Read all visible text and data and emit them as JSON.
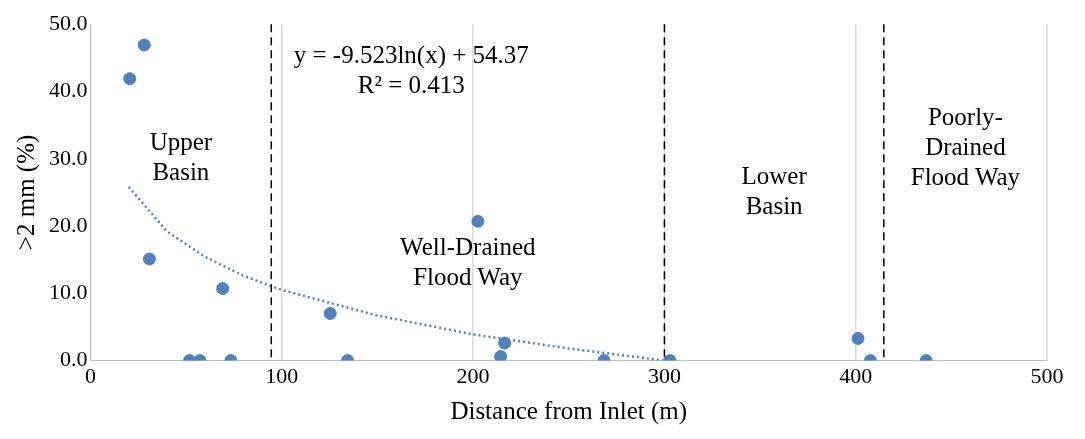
{
  "chart_data": {
    "type": "scatter",
    "xlabel": "Distance from Inlet (m)",
    "ylabel": ">2 mm (%)",
    "xlim": [
      0,
      500
    ],
    "xticks": [
      0,
      100,
      200,
      300,
      400,
      500
    ],
    "ylim": [
      0,
      50
    ],
    "yticks": [
      {
        "value": 0,
        "label": "0.0"
      },
      {
        "value": 10,
        "label": "10.0"
      },
      {
        "value": 20,
        "label": "20.0"
      },
      {
        "value": 30,
        "label": "30.0"
      },
      {
        "value": 40,
        "label": "40.0"
      },
      {
        "value": 50,
        "label": "50.0"
      }
    ],
    "grid": "x",
    "legend": false,
    "marker": "circle",
    "series": [
      {
        "type": "scatter",
        "color": "#4f81bd",
        "x": [
          20.5,
          28.1,
          30.8,
          51.8,
          57.2,
          69.1,
          73.4,
          125.3,
          134.4,
          202.5,
          214.4,
          216.5,
          268.4,
          302.9,
          401.2,
          407.7,
          436.8
        ],
        "values": [
          41.9,
          46.9,
          15.1,
          0,
          0,
          10.7,
          0,
          7.0,
          0,
          20.7,
          0.6,
          2.6,
          0,
          0,
          3.3,
          0,
          0
        ]
      },
      {
        "type": "line",
        "color": "#4f81bd",
        "line_style": "dotted",
        "marker": "none",
        "x": [
          20,
          40,
          60,
          80,
          100,
          150,
          200,
          250,
          300
        ],
        "values": [
          25.8,
          19.2,
          15.4,
          12.6,
          10.5,
          6.7,
          3.9,
          1.8,
          0
        ]
      }
    ],
    "ref_lines": [
      {
        "axis": "x",
        "value": 94.5,
        "color": "#000000",
        "line_style": "dashed"
      },
      {
        "axis": "x",
        "value": 300,
        "color": "#000000",
        "line_style": "dashed"
      },
      {
        "axis": "x",
        "value": 414.7,
        "color": "#000000",
        "line_style": "dashed"
      }
    ],
    "annotations": [
      "y = -9.523ln(x) + 54.37\nR² = 0.413",
      "Upper\nBasin",
      "Well-Drained\nFlood Way",
      "Lower\nBasin",
      "Poorly-\nDrained\nFlood Way"
    ]
  }
}
